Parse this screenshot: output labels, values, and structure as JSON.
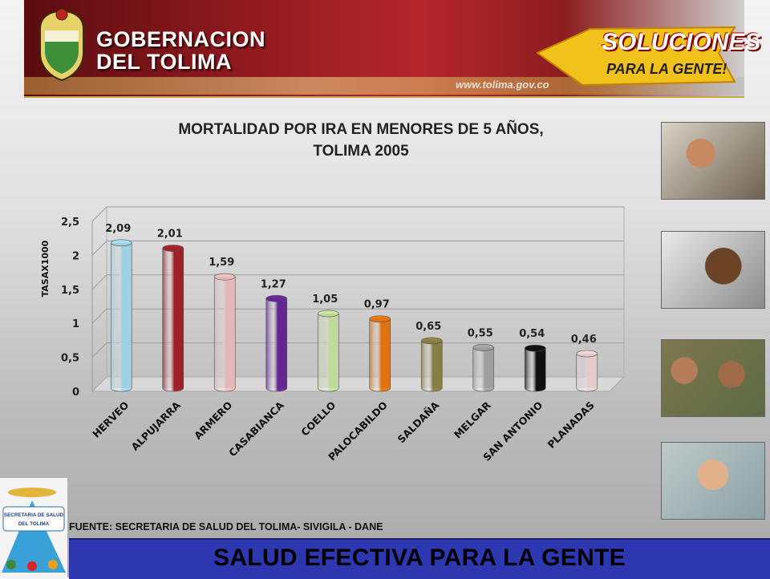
{
  "header": {
    "line1": "GOBERNACION",
    "line2": "DEL TOLIMA",
    "slogan_title": "SOLUCIONES",
    "slogan_sub": "PARA LA GENTE!",
    "site": "www.tolima.gov.co"
  },
  "chart_data": {
    "type": "bar",
    "title": "MORTALIDAD POR IRA EN MENORES DE 5 AÑOS,",
    "subtitle": "TOLIMA 2005",
    "ylabel": "TASAX1000",
    "xlabel": "",
    "ylim": [
      0,
      2.5
    ],
    "yticks": [
      "0",
      "0,5",
      "1",
      "1,5",
      "2",
      "2,5"
    ],
    "yticks_values": [
      0,
      0.5,
      1,
      1.5,
      2,
      2.5
    ],
    "categories": [
      "HERVEO",
      "ALPUJARRA",
      "ARMERO",
      "CASABIANCA",
      "COELLO",
      "PALOCABILDO",
      "SALDAÑA",
      "MELGAR",
      "SAN ANTONIO",
      "PLANADAS"
    ],
    "values": [
      2.09,
      2.01,
      1.59,
      1.27,
      1.05,
      0.97,
      0.65,
      0.55,
      0.54,
      0.46
    ],
    "value_labels": [
      "2,09",
      "2,01",
      "1,59",
      "1,27",
      "1,05",
      "0,97",
      "0,65",
      "0,55",
      "0,54",
      "0,46"
    ],
    "colors": [
      "#a9dff2",
      "#a8232b",
      "#f3c3c6",
      "#6a2a9c",
      "#cfe7a6",
      "#ee7a10",
      "#8f8648",
      "#a9a9a9",
      "#111111",
      "#f4d7d9"
    ],
    "grid": true,
    "legend": "none"
  },
  "source": "FUENTE: SECRETARIA DE SALUD DEL TOLIMA- SIVIGILA - DANE",
  "footer": "SALUD EFECTIVA PARA LA GENTE",
  "logo": {
    "line1": "SECRETARIA DE SALUD",
    "line2": "DEL TOLIMA"
  }
}
